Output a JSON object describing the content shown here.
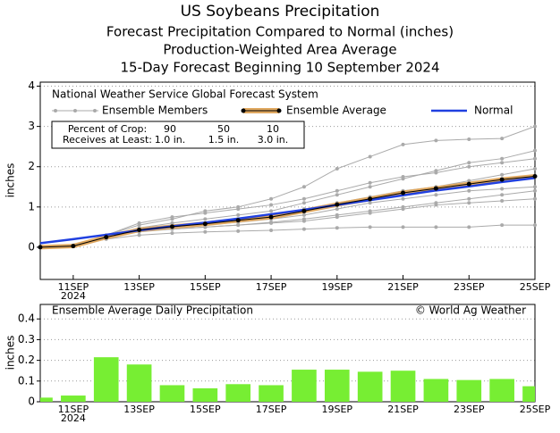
{
  "chart_data": [
    {
      "type": "line",
      "title": "US Soybeans Precipitation",
      "subtitles": [
        "Forecast Precipitation Compared to Normal (inches)",
        "Production-Weighted Area Average",
        "15-Day Forecast Beginning 10 September 2024"
      ],
      "ylabel": "inches",
      "legend_title": "National Weather Service Global Forecast System",
      "x": [
        10,
        11,
        12,
        13,
        14,
        15,
        16,
        17,
        18,
        19,
        20,
        21,
        22,
        23,
        24,
        25
      ],
      "xlim": [
        10,
        25
      ],
      "xticks": [
        {
          "value": 11,
          "label": "11SEP"
        },
        {
          "value": 13,
          "label": "13SEP"
        },
        {
          "value": 15,
          "label": "15SEP"
        },
        {
          "value": 17,
          "label": "17SEP"
        },
        {
          "value": 19,
          "label": "19SEP"
        },
        {
          "value": 21,
          "label": "21SEP"
        },
        {
          "value": 23,
          "label": "23SEP"
        },
        {
          "value": 25,
          "label": "25SEP"
        }
      ],
      "x_year_label": "2024",
      "ylim": [
        -0.8,
        4.1
      ],
      "yticks": [
        0,
        1,
        2,
        3,
        4
      ],
      "grid": true,
      "crop_table": {
        "rows": [
          [
            "Percent of Crop:",
            "90",
            "50",
            "10"
          ],
          [
            "Receives at Least:",
            "1.0 in.",
            "1.5 in.",
            "3.0 in."
          ]
        ]
      },
      "series": [
        {
          "name": "Ensemble Members",
          "color": "#aaaaaa",
          "values": [
            [
              null,
              0.03,
              0.3,
              0.55,
              0.7,
              0.9,
              1.0,
              1.2,
              1.5,
              1.95,
              2.25,
              2.55,
              2.65,
              2.68,
              2.7,
              3.0
            ],
            [
              null,
              0.03,
              0.2,
              0.3,
              0.35,
              0.38,
              0.4,
              0.42,
              0.45,
              0.48,
              0.5,
              0.5,
              0.5,
              0.5,
              0.55,
              0.55
            ],
            [
              null,
              0.03,
              0.28,
              0.48,
              0.6,
              0.7,
              0.8,
              0.9,
              1.1,
              1.3,
              1.5,
              1.7,
              1.9,
              2.1,
              2.2,
              2.4
            ],
            [
              null,
              0.03,
              0.22,
              0.4,
              0.45,
              0.5,
              0.55,
              0.6,
              0.65,
              0.75,
              0.85,
              0.95,
              1.05,
              1.1,
              1.15,
              1.2
            ],
            [
              null,
              0.03,
              0.26,
              0.45,
              0.55,
              0.6,
              0.7,
              0.8,
              0.95,
              1.1,
              1.25,
              1.4,
              1.5,
              1.65,
              1.8,
              1.95
            ],
            [
              null,
              0.03,
              0.24,
              0.42,
              0.5,
              0.55,
              0.62,
              0.7,
              0.8,
              0.95,
              1.1,
              1.2,
              1.3,
              1.4,
              1.45,
              1.5
            ],
            [
              null,
              0.03,
              0.3,
              0.6,
              0.75,
              0.85,
              0.95,
              1.05,
              1.2,
              1.4,
              1.6,
              1.75,
              1.85,
              2.0,
              2.1,
              2.2
            ],
            [
              null,
              0.03,
              0.25,
              0.38,
              0.45,
              0.5,
              0.55,
              0.62,
              0.7,
              0.8,
              0.9,
              1.0,
              1.1,
              1.2,
              1.3,
              1.4
            ]
          ]
        },
        {
          "name": "Ensemble Average",
          "color": "#e0a860",
          "values": [
            0,
            0.03,
            0.25,
            0.43,
            0.51,
            0.58,
            0.67,
            0.75,
            0.9,
            1.06,
            1.2,
            1.35,
            1.46,
            1.57,
            1.68,
            1.76
          ]
        },
        {
          "name": "Normal",
          "color": "#2040e0",
          "values": [
            0.1,
            0.2,
            0.31,
            0.42,
            0.52,
            0.61,
            0.71,
            0.82,
            0.93,
            1.05,
            1.17,
            1.29,
            1.41,
            1.51,
            1.62,
            1.72
          ]
        }
      ]
    },
    {
      "type": "bar",
      "title": "Ensemble Average Daily Precipitation",
      "credit": "© World Ag Weather",
      "ylabel": "inches",
      "x": [
        10,
        11,
        12,
        13,
        14,
        15,
        16,
        17,
        18,
        19,
        20,
        21,
        22,
        23,
        24,
        25
      ],
      "xlim": [
        10,
        25
      ],
      "xticks": [
        {
          "value": 11,
          "label": "11SEP"
        },
        {
          "value": 13,
          "label": "13SEP"
        },
        {
          "value": 15,
          "label": "15SEP"
        },
        {
          "value": 17,
          "label": "17SEP"
        },
        {
          "value": 19,
          "label": "19SEP"
        },
        {
          "value": 21,
          "label": "21SEP"
        },
        {
          "value": 23,
          "label": "23SEP"
        },
        {
          "value": 25,
          "label": "25SEP"
        }
      ],
      "x_year_label": "2024",
      "ylim": [
        0,
        0.47
      ],
      "yticks": [
        0,
        0.1,
        0.2,
        0.3,
        0.4
      ],
      "grid": true,
      "color": "#77ee33",
      "values": [
        0.02,
        0.03,
        0.215,
        0.18,
        0.08,
        0.065,
        0.085,
        0.08,
        0.155,
        0.155,
        0.145,
        0.15,
        0.11,
        0.105,
        0.11,
        0.075
      ]
    }
  ]
}
